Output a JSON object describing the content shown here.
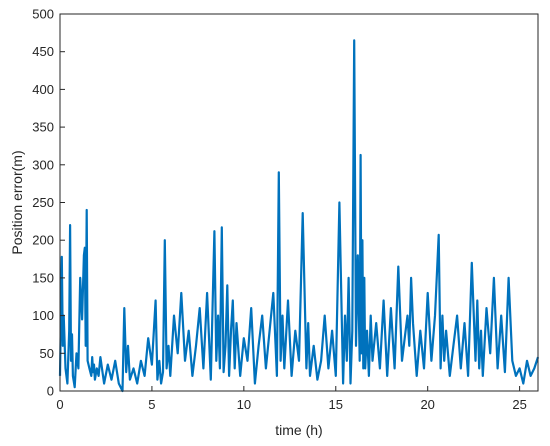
{
  "chart_data": {
    "type": "line",
    "title": "",
    "xlabel": "time (h)",
    "ylabel": "Position error(m)",
    "xlim": [
      0,
      26
    ],
    "ylim": [
      0,
      500
    ],
    "xticks": [
      0,
      5,
      10,
      15,
      20,
      25
    ],
    "yticks": [
      0,
      50,
      100,
      150,
      200,
      250,
      300,
      350,
      400,
      450,
      500
    ],
    "grid": false,
    "legend": "none",
    "line_color": "#0072BD",
    "series": [
      {
        "x": [
          0,
          0.1,
          0.15,
          0.2,
          0.3,
          0.4,
          0.5,
          0.55,
          0.6,
          0.65,
          0.7,
          0.8,
          0.9,
          1.0,
          1.1,
          1.2,
          1.3,
          1.35,
          1.4,
          1.45,
          1.5,
          1.6,
          1.7,
          1.75,
          1.8,
          1.85,
          1.9,
          2.0,
          2.1,
          2.2,
          2.4,
          2.6,
          2.8,
          3.0,
          3.2,
          3.4,
          3.5,
          3.6,
          3.7,
          3.8,
          4.0,
          4.2,
          4.4,
          4.6,
          4.8,
          5.0,
          5.2,
          5.3,
          5.4,
          5.5,
          5.6,
          5.7,
          5.8,
          5.9,
          6.0,
          6.2,
          6.4,
          6.6,
          6.8,
          7.0,
          7.2,
          7.4,
          7.6,
          7.8,
          8.0,
          8.2,
          8.4,
          8.5,
          8.6,
          8.7,
          8.8,
          8.9,
          9.0,
          9.1,
          9.2,
          9.3,
          9.4,
          9.5,
          9.6,
          9.8,
          10.0,
          10.2,
          10.4,
          10.6,
          10.8,
          11.0,
          11.2,
          11.4,
          11.6,
          11.8,
          11.9,
          12.0,
          12.1,
          12.2,
          12.4,
          12.6,
          12.8,
          13.0,
          13.2,
          13.4,
          13.5,
          13.6,
          13.8,
          14.0,
          14.2,
          14.4,
          14.6,
          14.8,
          15.0,
          15.2,
          15.4,
          15.5,
          15.6,
          15.7,
          15.8,
          15.9,
          16.0,
          16.1,
          16.2,
          16.3,
          16.35,
          16.4,
          16.45,
          16.5,
          16.55,
          16.6,
          16.7,
          16.8,
          16.9,
          17.0,
          17.2,
          17.4,
          17.6,
          17.8,
          18.0,
          18.2,
          18.4,
          18.6,
          18.8,
          18.9,
          19.0,
          19.1,
          19.2,
          19.4,
          19.6,
          19.8,
          20.0,
          20.2,
          20.4,
          20.6,
          20.7,
          20.8,
          20.9,
          21.0,
          21.2,
          21.4,
          21.6,
          21.8,
          22.0,
          22.2,
          22.4,
          22.6,
          22.7,
          22.8,
          22.9,
          23.0,
          23.2,
          23.4,
          23.6,
          23.8,
          24.0,
          24.2,
          24.4,
          24.6,
          24.8,
          25.0,
          25.2,
          25.4,
          25.6,
          25.8,
          26.0
        ],
        "y": [
          20,
          178,
          60,
          100,
          30,
          10,
          80,
          220,
          40,
          75,
          20,
          5,
          50,
          30,
          150,
          95,
          180,
          190,
          60,
          240,
          40,
          30,
          20,
          45,
          25,
          35,
          15,
          30,
          20,
          45,
          10,
          35,
          15,
          40,
          10,
          0,
          110,
          25,
          60,
          15,
          30,
          10,
          40,
          20,
          70,
          35,
          120,
          15,
          40,
          10,
          25,
          200,
          30,
          60,
          20,
          100,
          50,
          130,
          40,
          80,
          20,
          60,
          110,
          30,
          130,
          15,
          212,
          40,
          100,
          30,
          217,
          25,
          60,
          140,
          20,
          80,
          120,
          30,
          90,
          20,
          70,
          40,
          110,
          10,
          60,
          100,
          30,
          80,
          130,
          20,
          290,
          40,
          100,
          30,
          120,
          20,
          80,
          40,
          236,
          30,
          90,
          20,
          60,
          15,
          40,
          100,
          30,
          80,
          20,
          250,
          10,
          100,
          40,
          150,
          10,
          80,
          465,
          60,
          180,
          40,
          313,
          50,
          200,
          30,
          150,
          30,
          80,
          20,
          100,
          40,
          90,
          30,
          120,
          20,
          110,
          30,
          165,
          40,
          80,
          100,
          60,
          150,
          90,
          20,
          80,
          30,
          130,
          40,
          100,
          207,
          30,
          100,
          40,
          80,
          20,
          60,
          100,
          30,
          90,
          20,
          170,
          40,
          120,
          30,
          80,
          20,
          110,
          50,
          150,
          30,
          100,
          25,
          150,
          40,
          20,
          30,
          10,
          40,
          20,
          30,
          45
        ]
      }
    ]
  }
}
